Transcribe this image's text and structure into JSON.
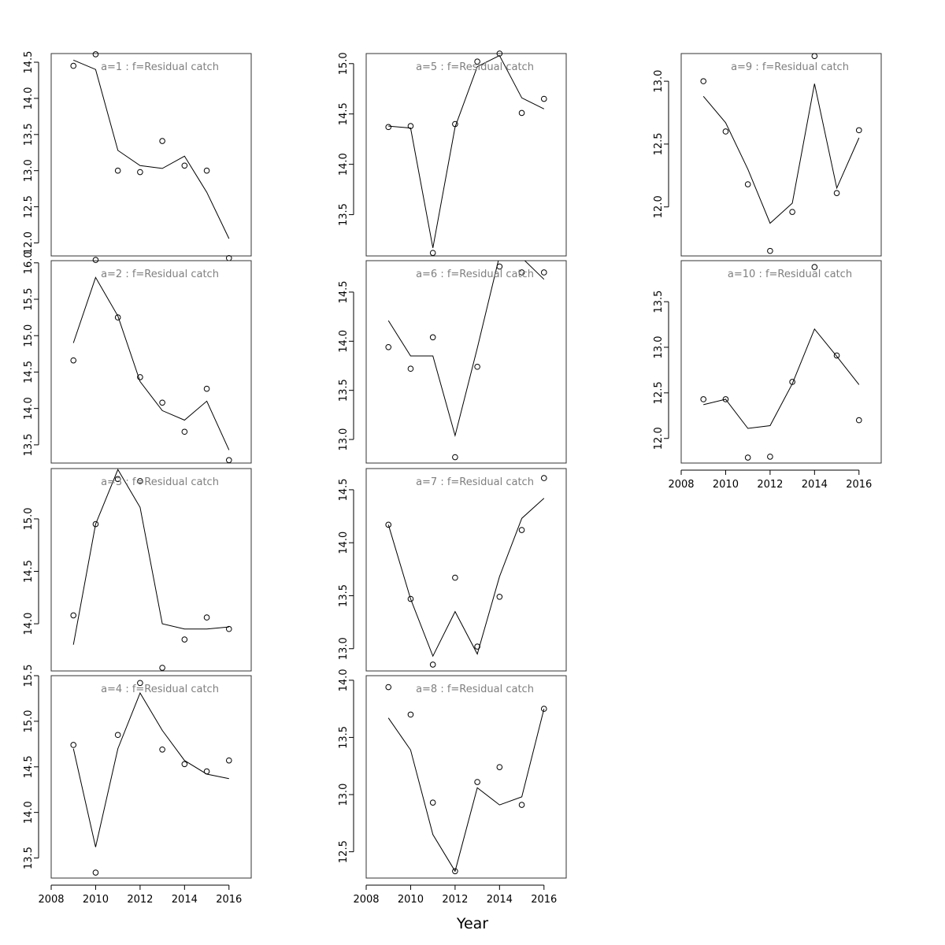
{
  "chart_data": {
    "type": "scatter",
    "xlabel": "Year",
    "x_ticks": [
      2008,
      2010,
      2012,
      2014,
      2016
    ],
    "xlim": [
      2008,
      2017
    ],
    "grid": false,
    "panels": [
      {
        "title": "a=1  :  f=Residual catch",
        "ylim": [
          11.82,
          14.62
        ],
        "y_ticks": [
          12.0,
          12.5,
          13.0,
          13.5,
          14.0,
          14.5
        ],
        "x": [
          2009,
          2010,
          2011,
          2012,
          2013,
          2014,
          2015,
          2016
        ],
        "observed": [
          14.45,
          14.61,
          13.0,
          12.98,
          13.41,
          13.07,
          13.0,
          11.79
        ],
        "fitted": [
          14.53,
          14.4,
          13.28,
          13.07,
          13.03,
          13.2,
          12.7,
          12.06
        ]
      },
      {
        "title": "a=2  :  f=Residual catch",
        "ylim": [
          13.25,
          16.03
        ],
        "y_ticks": [
          13.5,
          14.0,
          14.5,
          15.0,
          15.5,
          16.0
        ],
        "x": [
          2009,
          2010,
          2011,
          2012,
          2013,
          2014,
          2015,
          2016
        ],
        "observed": [
          14.66,
          16.04,
          15.25,
          14.43,
          14.08,
          13.68,
          14.27,
          13.29
        ],
        "fitted": [
          14.9,
          15.8,
          15.27,
          14.37,
          13.97,
          13.84,
          14.1,
          13.43
        ]
      },
      {
        "title": "a=3  :  f=Residual catch",
        "ylim": [
          13.55,
          15.48
        ],
        "y_ticks": [
          14.0,
          14.5,
          15.0
        ],
        "x": [
          2009,
          2010,
          2011,
          2012,
          2013,
          2014,
          2015,
          2016
        ],
        "observed": [
          14.08,
          14.95,
          15.38,
          15.36,
          13.58,
          13.85,
          14.06,
          13.95
        ],
        "fitted": [
          13.8,
          14.95,
          15.47,
          15.11,
          14.0,
          13.95,
          13.95,
          13.97
        ]
      },
      {
        "title": "a=4  :  f=Residual catch",
        "ylim": [
          13.28,
          15.5
        ],
        "y_ticks": [
          13.5,
          14.0,
          14.5,
          15.0,
          15.5
        ],
        "x": [
          2009,
          2010,
          2011,
          2012,
          2013,
          2014,
          2015,
          2016
        ],
        "observed": [
          14.74,
          13.34,
          14.85,
          15.42,
          14.69,
          14.53,
          14.45,
          14.57
        ],
        "fitted": [
          14.7,
          13.62,
          14.7,
          15.31,
          14.9,
          14.57,
          14.42,
          14.37
        ]
      },
      {
        "title": "a=5  :  f=Residual catch",
        "ylim": [
          13.09,
          15.1
        ],
        "y_ticks": [
          13.5,
          14.0,
          14.5,
          15.0
        ],
        "x": [
          2009,
          2010,
          2011,
          2012,
          2013,
          2014,
          2015,
          2016
        ],
        "observed": [
          14.37,
          14.38,
          13.12,
          14.4,
          15.02,
          15.1,
          14.51,
          14.65
        ],
        "fitted": [
          14.38,
          14.36,
          13.17,
          14.37,
          14.97,
          15.08,
          14.66,
          14.55
        ]
      },
      {
        "title": "a=6  :  f=Residual catch",
        "ylim": [
          12.76,
          14.82
        ],
        "y_ticks": [
          13.0,
          13.5,
          14.0,
          14.5
        ],
        "x": [
          2009,
          2010,
          2011,
          2012,
          2013,
          2014,
          2015,
          2016
        ],
        "observed": [
          13.94,
          13.72,
          14.04,
          12.82,
          13.74,
          14.76,
          14.7,
          14.7
        ],
        "fitted": [
          14.21,
          13.85,
          13.85,
          13.04,
          13.93,
          14.87,
          14.85,
          14.63
        ]
      },
      {
        "title": "a=7  :  f=Residual catch",
        "ylim": [
          12.79,
          14.7
        ],
        "y_ticks": [
          13.0,
          13.5,
          14.0,
          14.5
        ],
        "x": [
          2009,
          2010,
          2011,
          2012,
          2013,
          2014,
          2015,
          2016
        ],
        "observed": [
          14.17,
          13.47,
          12.85,
          13.67,
          13.02,
          13.49,
          14.12,
          14.61
        ],
        "fitted": [
          14.17,
          13.47,
          12.93,
          13.35,
          12.95,
          13.68,
          14.23,
          14.42
        ]
      },
      {
        "title": "a=8  :  f=Residual catch",
        "ylim": [
          12.27,
          14.04
        ],
        "y_ticks": [
          12.5,
          13.0,
          13.5,
          14.0
        ],
        "x": [
          2009,
          2010,
          2011,
          2012,
          2013,
          2014,
          2015,
          2016
        ],
        "observed": [
          13.94,
          13.7,
          12.93,
          12.33,
          13.11,
          13.24,
          12.91,
          13.75
        ],
        "fitted": [
          13.67,
          13.39,
          12.65,
          12.33,
          13.06,
          12.91,
          12.98,
          13.75
        ]
      },
      {
        "title": "a=9  :  f=Residual catch",
        "ylim": [
          11.61,
          13.22
        ],
        "y_ticks": [
          12.0,
          12.5,
          13.0
        ],
        "x": [
          2009,
          2010,
          2011,
          2012,
          2013,
          2014,
          2015,
          2016
        ],
        "observed": [
          13.0,
          12.6,
          12.18,
          11.65,
          11.96,
          13.2,
          12.11,
          12.61
        ],
        "fitted": [
          12.88,
          12.67,
          12.3,
          11.87,
          12.03,
          12.98,
          12.15,
          12.55
        ]
      },
      {
        "title": "a=10  :  f=Residual catch",
        "ylim": [
          11.73,
          13.95
        ],
        "y_ticks": [
          12.0,
          12.5,
          13.0,
          13.5
        ],
        "x": [
          2009,
          2010,
          2011,
          2012,
          2013,
          2014,
          2015,
          2016
        ],
        "observed": [
          12.43,
          12.43,
          11.79,
          11.8,
          12.62,
          13.88,
          12.91,
          12.2
        ],
        "fitted": [
          12.37,
          12.43,
          12.11,
          12.14,
          12.6,
          13.2,
          12.9,
          12.59
        ]
      }
    ]
  }
}
